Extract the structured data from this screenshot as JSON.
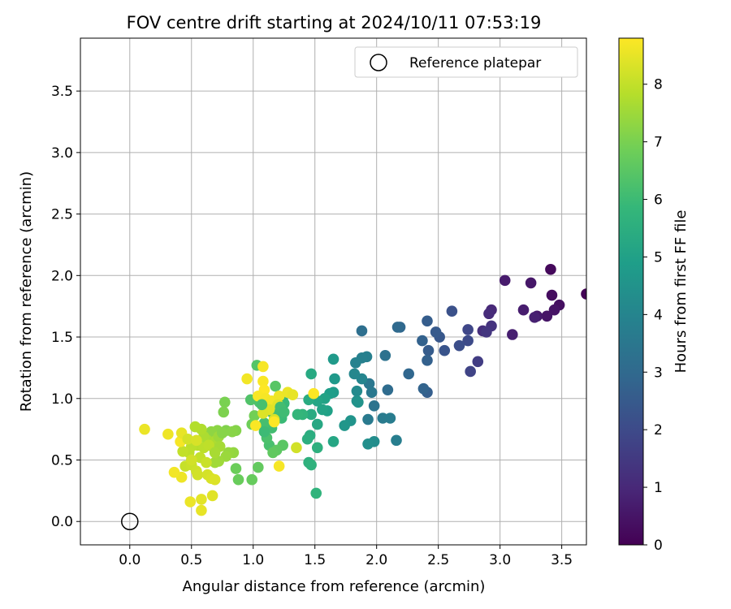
{
  "chart_data": {
    "type": "scatter",
    "title": "FOV centre drift starting at 2024/10/11 07:53:19",
    "xlabel": "Angular distance from reference (arcmin)",
    "ylabel": "Rotation from reference (arcmin)",
    "xlim": [
      -0.4,
      3.7
    ],
    "ylim": [
      -0.19,
      3.93
    ],
    "x_ticks": [
      "0.0",
      "0.5",
      "1.0",
      "1.5",
      "2.0",
      "2.5",
      "3.0",
      "3.5"
    ],
    "y_ticks": [
      "0.0",
      "0.5",
      "1.0",
      "1.5",
      "2.0",
      "2.5",
      "3.0",
      "3.5"
    ],
    "grid": true,
    "legend": {
      "position": "top-right",
      "entries": [
        "Reference platepar"
      ]
    },
    "reference_point": {
      "x": 0.0,
      "y": 0.0
    },
    "colorbar": {
      "label": "Hours from first FF file",
      "range": [
        0,
        8.8
      ],
      "ticks": [
        "0",
        "1",
        "2",
        "3",
        "4",
        "5",
        "6",
        "7",
        "8"
      ],
      "colormap": [
        "#440154",
        "#482878",
        "#3e4989",
        "#31688e",
        "#26828e",
        "#1f9e89",
        "#35b779",
        "#6ece58",
        "#b5de2b",
        "#fde725"
      ]
    },
    "points": [
      {
        "x": 3.7,
        "y": 1.85,
        "h": 0.05
      },
      {
        "x": 3.41,
        "y": 2.05,
        "h": 0.2
      },
      {
        "x": 3.42,
        "y": 1.84,
        "h": 0.3
      },
      {
        "x": 3.48,
        "y": 1.76,
        "h": 0.35
      },
      {
        "x": 3.44,
        "y": 1.72,
        "h": 0.45
      },
      {
        "x": 3.38,
        "y": 1.67,
        "h": 0.5
      },
      {
        "x": 3.3,
        "y": 1.67,
        "h": 0.6
      },
      {
        "x": 3.25,
        "y": 1.94,
        "h": 0.55
      },
      {
        "x": 3.19,
        "y": 1.72,
        "h": 0.7
      },
      {
        "x": 3.1,
        "y": 1.52,
        "h": 0.75
      },
      {
        "x": 3.04,
        "y": 1.96,
        "h": 0.65
      },
      {
        "x": 3.28,
        "y": 1.66,
        "h": 0.8
      },
      {
        "x": 2.93,
        "y": 1.72,
        "h": 1.0
      },
      {
        "x": 2.91,
        "y": 1.69,
        "h": 1.1
      },
      {
        "x": 2.93,
        "y": 1.59,
        "h": 1.3
      },
      {
        "x": 2.86,
        "y": 1.55,
        "h": 1.2
      },
      {
        "x": 2.89,
        "y": 1.54,
        "h": 1.4
      },
      {
        "x": 2.82,
        "y": 1.3,
        "h": 1.6
      },
      {
        "x": 2.76,
        "y": 1.22,
        "h": 1.8
      },
      {
        "x": 2.74,
        "y": 1.56,
        "h": 1.9
      },
      {
        "x": 2.74,
        "y": 1.47,
        "h": 2.0
      },
      {
        "x": 2.67,
        "y": 1.43,
        "h": 2.1
      },
      {
        "x": 2.61,
        "y": 1.71,
        "h": 2.2
      },
      {
        "x": 2.55,
        "y": 1.39,
        "h": 2.3
      },
      {
        "x": 2.51,
        "y": 1.5,
        "h": 2.4
      },
      {
        "x": 2.48,
        "y": 1.54,
        "h": 2.5
      },
      {
        "x": 2.41,
        "y": 1.63,
        "h": 2.6
      },
      {
        "x": 2.42,
        "y": 1.39,
        "h": 2.55
      },
      {
        "x": 2.41,
        "y": 1.31,
        "h": 2.7
      },
      {
        "x": 2.37,
        "y": 1.47,
        "h": 2.75
      },
      {
        "x": 2.41,
        "y": 1.05,
        "h": 2.65
      },
      {
        "x": 2.38,
        "y": 1.08,
        "h": 2.8
      },
      {
        "x": 2.26,
        "y": 1.2,
        "h": 2.9
      },
      {
        "x": 2.19,
        "y": 1.58,
        "h": 2.95
      },
      {
        "x": 2.17,
        "y": 1.58,
        "h": 3.0
      },
      {
        "x": 2.09,
        "y": 1.07,
        "h": 3.1
      },
      {
        "x": 2.07,
        "y": 1.35,
        "h": 3.3
      },
      {
        "x": 1.88,
        "y": 1.55,
        "h": 3.2
      },
      {
        "x": 1.98,
        "y": 0.94,
        "h": 3.4
      },
      {
        "x": 1.94,
        "y": 1.12,
        "h": 3.5
      },
      {
        "x": 1.96,
        "y": 1.05,
        "h": 3.55
      },
      {
        "x": 1.93,
        "y": 0.83,
        "h": 3.6
      },
      {
        "x": 2.05,
        "y": 0.84,
        "h": 3.65
      },
      {
        "x": 2.11,
        "y": 0.84,
        "h": 3.7
      },
      {
        "x": 2.16,
        "y": 0.66,
        "h": 3.75
      },
      {
        "x": 1.92,
        "y": 1.34,
        "h": 3.8
      },
      {
        "x": 1.88,
        "y": 1.33,
        "h": 3.85
      },
      {
        "x": 1.83,
        "y": 1.29,
        "h": 3.9
      },
      {
        "x": 1.88,
        "y": 1.16,
        "h": 4.0
      },
      {
        "x": 1.82,
        "y": 1.2,
        "h": 4.1
      },
      {
        "x": 1.84,
        "y": 1.06,
        "h": 4.2
      },
      {
        "x": 1.98,
        "y": 0.65,
        "h": 4.3
      },
      {
        "x": 1.93,
        "y": 0.63,
        "h": 4.35
      },
      {
        "x": 1.84,
        "y": 0.98,
        "h": 4.4
      },
      {
        "x": 1.85,
        "y": 0.97,
        "h": 4.5
      },
      {
        "x": 1.79,
        "y": 0.82,
        "h": 4.55
      },
      {
        "x": 1.74,
        "y": 0.78,
        "h": 4.6
      },
      {
        "x": 1.66,
        "y": 1.16,
        "h": 4.7
      },
      {
        "x": 1.65,
        "y": 1.32,
        "h": 4.75
      },
      {
        "x": 1.65,
        "y": 1.05,
        "h": 4.8
      },
      {
        "x": 1.62,
        "y": 1.04,
        "h": 4.9
      },
      {
        "x": 1.6,
        "y": 0.9,
        "h": 5.0
      },
      {
        "x": 1.58,
        "y": 1.0,
        "h": 5.05
      },
      {
        "x": 1.56,
        "y": 0.91,
        "h": 5.1
      },
      {
        "x": 1.52,
        "y": 0.98,
        "h": 5.15
      },
      {
        "x": 1.65,
        "y": 0.65,
        "h": 5.2
      },
      {
        "x": 1.52,
        "y": 0.79,
        "h": 5.25
      },
      {
        "x": 1.47,
        "y": 1.2,
        "h": 5.3
      },
      {
        "x": 1.47,
        "y": 0.87,
        "h": 5.35
      },
      {
        "x": 1.45,
        "y": 0.99,
        "h": 5.4
      },
      {
        "x": 1.46,
        "y": 0.7,
        "h": 5.45
      },
      {
        "x": 1.44,
        "y": 0.67,
        "h": 5.5
      },
      {
        "x": 1.52,
        "y": 0.6,
        "h": 5.55
      },
      {
        "x": 1.45,
        "y": 0.48,
        "h": 5.6
      },
      {
        "x": 1.47,
        "y": 0.46,
        "h": 5.65
      },
      {
        "x": 1.51,
        "y": 0.23,
        "h": 5.7
      },
      {
        "x": 1.4,
        "y": 0.87,
        "h": 5.75
      },
      {
        "x": 1.36,
        "y": 0.87,
        "h": 5.8
      },
      {
        "x": 1.24,
        "y": 0.98,
        "h": 5.85
      },
      {
        "x": 1.25,
        "y": 0.96,
        "h": 5.9
      },
      {
        "x": 1.23,
        "y": 0.84,
        "h": 5.95
      },
      {
        "x": 1.2,
        "y": 0.86,
        "h": 6.0
      },
      {
        "x": 1.16,
        "y": 0.88,
        "h": 6.05
      },
      {
        "x": 1.15,
        "y": 0.76,
        "h": 6.1
      },
      {
        "x": 1.09,
        "y": 0.8,
        "h": 6.15
      },
      {
        "x": 1.13,
        "y": 0.62,
        "h": 6.2
      },
      {
        "x": 1.11,
        "y": 0.68,
        "h": 6.25
      },
      {
        "x": 1.05,
        "y": 0.97,
        "h": 6.3
      },
      {
        "x": 0.98,
        "y": 0.99,
        "h": 6.35
      },
      {
        "x": 1.03,
        "y": 1.27,
        "h": 6.4
      },
      {
        "x": 1.18,
        "y": 1.1,
        "h": 6.45
      },
      {
        "x": 1.24,
        "y": 0.62,
        "h": 6.5
      },
      {
        "x": 1.19,
        "y": 0.58,
        "h": 6.55
      },
      {
        "x": 1.16,
        "y": 0.56,
        "h": 6.6
      },
      {
        "x": 1.04,
        "y": 0.44,
        "h": 6.65
      },
      {
        "x": 0.99,
        "y": 0.34,
        "h": 6.7
      },
      {
        "x": 0.88,
        "y": 0.34,
        "h": 6.75
      },
      {
        "x": 0.86,
        "y": 0.43,
        "h": 6.8
      },
      {
        "x": 0.99,
        "y": 0.79,
        "h": 6.85
      },
      {
        "x": 1.01,
        "y": 0.86,
        "h": 6.9
      },
      {
        "x": 0.77,
        "y": 0.97,
        "h": 7.0
      },
      {
        "x": 0.76,
        "y": 0.89,
        "h": 7.05
      },
      {
        "x": 0.78,
        "y": 0.74,
        "h": 7.1
      },
      {
        "x": 0.86,
        "y": 0.74,
        "h": 7.15
      },
      {
        "x": 0.83,
        "y": 0.73,
        "h": 7.2
      },
      {
        "x": 0.71,
        "y": 0.74,
        "h": 7.25
      },
      {
        "x": 0.66,
        "y": 0.73,
        "h": 7.3
      },
      {
        "x": 0.84,
        "y": 0.56,
        "h": 7.35
      },
      {
        "x": 0.8,
        "y": 0.56,
        "h": 7.4
      },
      {
        "x": 0.78,
        "y": 0.53,
        "h": 7.45
      },
      {
        "x": 0.72,
        "y": 0.49,
        "h": 7.5
      },
      {
        "x": 0.69,
        "y": 0.48,
        "h": 7.55
      },
      {
        "x": 0.67,
        "y": 0.61,
        "h": 7.6
      },
      {
        "x": 0.63,
        "y": 0.66,
        "h": 7.65
      },
      {
        "x": 0.6,
        "y": 0.69,
        "h": 7.7
      },
      {
        "x": 0.58,
        "y": 0.75,
        "h": 7.75
      },
      {
        "x": 0.53,
        "y": 0.77,
        "h": 7.8
      },
      {
        "x": 0.55,
        "y": 0.62,
        "h": 7.85
      },
      {
        "x": 0.5,
        "y": 0.61,
        "h": 7.9
      },
      {
        "x": 0.48,
        "y": 0.56,
        "h": 7.95
      },
      {
        "x": 0.43,
        "y": 0.57,
        "h": 8.0
      },
      {
        "x": 0.45,
        "y": 0.45,
        "h": 8.05
      },
      {
        "x": 0.5,
        "y": 0.46,
        "h": 8.1
      },
      {
        "x": 0.54,
        "y": 0.41,
        "h": 8.15
      },
      {
        "x": 0.55,
        "y": 0.38,
        "h": 8.2
      },
      {
        "x": 0.63,
        "y": 0.38,
        "h": 8.25
      },
      {
        "x": 0.66,
        "y": 0.35,
        "h": 8.3
      },
      {
        "x": 0.69,
        "y": 0.34,
        "h": 8.35
      },
      {
        "x": 0.67,
        "y": 0.21,
        "h": 8.4
      },
      {
        "x": 0.58,
        "y": 0.18,
        "h": 8.45
      },
      {
        "x": 0.58,
        "y": 0.09,
        "h": 8.5
      },
      {
        "x": 0.49,
        "y": 0.16,
        "h": 8.55
      },
      {
        "x": 0.42,
        "y": 0.36,
        "h": 8.6
      },
      {
        "x": 0.36,
        "y": 0.4,
        "h": 8.65
      },
      {
        "x": 0.41,
        "y": 0.65,
        "h": 8.7
      },
      {
        "x": 0.31,
        "y": 0.71,
        "h": 8.6
      },
      {
        "x": 0.12,
        "y": 0.75,
        "h": 8.55
      },
      {
        "x": 0.42,
        "y": 0.72,
        "h": 8.5
      },
      {
        "x": 0.95,
        "y": 1.16,
        "h": 8.65
      },
      {
        "x": 1.08,
        "y": 1.26,
        "h": 8.7
      },
      {
        "x": 1.08,
        "y": 1.14,
        "h": 8.75
      },
      {
        "x": 1.09,
        "y": 1.07,
        "h": 8.8
      },
      {
        "x": 1.04,
        "y": 1.02,
        "h": 8.75
      },
      {
        "x": 1.1,
        "y": 1.0,
        "h": 8.7
      },
      {
        "x": 1.15,
        "y": 0.98,
        "h": 8.65
      },
      {
        "x": 1.21,
        "y": 1.02,
        "h": 8.6
      },
      {
        "x": 1.28,
        "y": 1.05,
        "h": 8.55
      },
      {
        "x": 1.32,
        "y": 1.03,
        "h": 8.5
      },
      {
        "x": 1.2,
        "y": 0.95,
        "h": 8.45
      },
      {
        "x": 1.13,
        "y": 0.91,
        "h": 8.4
      },
      {
        "x": 1.08,
        "y": 0.88,
        "h": 8.35
      },
      {
        "x": 1.17,
        "y": 0.83,
        "h": 8.3
      },
      {
        "x": 1.02,
        "y": 0.78,
        "h": 8.75
      },
      {
        "x": 1.17,
        "y": 0.81,
        "h": 8.8
      },
      {
        "x": 1.49,
        "y": 1.04,
        "h": 8.8
      },
      {
        "x": 1.21,
        "y": 0.45,
        "h": 8.7
      },
      {
        "x": 1.35,
        "y": 0.6,
        "h": 8.2
      },
      {
        "x": 0.6,
        "y": 0.6,
        "h": 7.9
      },
      {
        "x": 0.7,
        "y": 0.66,
        "h": 7.7
      },
      {
        "x": 0.72,
        "y": 0.69,
        "h": 7.5
      },
      {
        "x": 0.64,
        "y": 0.62,
        "h": 7.95
      },
      {
        "x": 0.57,
        "y": 0.52,
        "h": 8.0
      },
      {
        "x": 0.62,
        "y": 0.48,
        "h": 8.1
      },
      {
        "x": 0.5,
        "y": 0.5,
        "h": 8.2
      },
      {
        "x": 0.47,
        "y": 0.67,
        "h": 8.25
      },
      {
        "x": 0.54,
        "y": 0.66,
        "h": 8.3
      },
      {
        "x": 0.73,
        "y": 0.61,
        "h": 7.6
      },
      {
        "x": 0.69,
        "y": 0.56,
        "h": 7.65
      },
      {
        "x": 0.75,
        "y": 0.72,
        "h": 7.2
      },
      {
        "x": 1.07,
        "y": 0.95,
        "h": 6.2
      },
      {
        "x": 1.22,
        "y": 0.93,
        "h": 6.1
      },
      {
        "x": 1.09,
        "y": 0.73,
        "h": 6.0
      },
      {
        "x": 1.25,
        "y": 0.89,
        "h": 6.05
      }
    ]
  }
}
